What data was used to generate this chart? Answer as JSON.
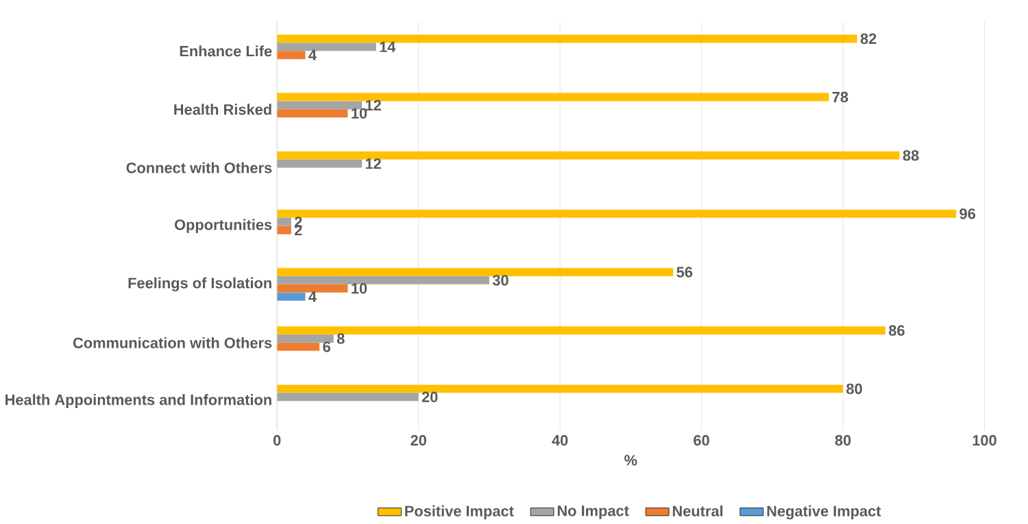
{
  "chart_data": {
    "type": "bar",
    "orientation": "horizontal",
    "xlabel": "%",
    "categories": [
      "Enhance Life",
      "Health Risked",
      "Connect with Others",
      "Opportunities",
      "Feelings of Isolation",
      "Communication with Others",
      "Health Appointments and Information"
    ],
    "series": [
      {
        "name": "Positive Impact",
        "color": "#ffc000",
        "values": [
          82,
          78,
          88,
          96,
          56,
          86,
          80
        ]
      },
      {
        "name": "No Impact",
        "color": "#a5a5a5",
        "values": [
          14,
          12,
          12,
          2,
          30,
          8,
          20
        ]
      },
      {
        "name": "Neutral",
        "color": "#ed7d31",
        "values": [
          4,
          10,
          null,
          2,
          10,
          6,
          null
        ]
      },
      {
        "name": "Negative Impact",
        "color": "#5b9bd5",
        "values": [
          null,
          null,
          null,
          null,
          4,
          null,
          null
        ]
      }
    ],
    "xlim": [
      0,
      100
    ],
    "xticks": [
      0,
      20,
      40,
      60,
      80,
      100
    ],
    "grid": "x",
    "legend": "bottom",
    "data_labels": true
  }
}
